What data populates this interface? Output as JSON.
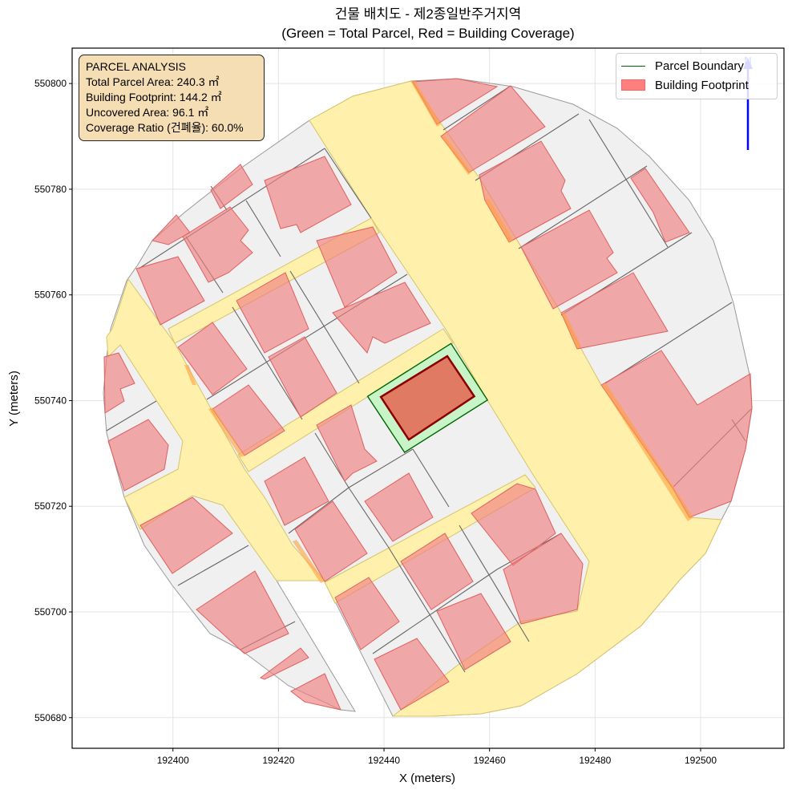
{
  "title": {
    "line1": "건물 배치도 - 제2종일반주거지역",
    "line2": "(Green = Total Parcel, Red = Building Coverage)"
  },
  "info_box": {
    "heading": "PARCEL ANALYSIS",
    "total_area": "Total Parcel Area: 240.3 ㎡",
    "footprint": "Building Footprint: 144.2 ㎡",
    "uncovered": "Uncovered Area: 96.1 ㎡",
    "ratio": "Coverage Ratio (건폐율): 60.0%"
  },
  "legend": {
    "parcel": "Parcel Boundary",
    "building": "Building Footprint"
  },
  "north_arrow": {
    "label": "N",
    "color": "#0000ff"
  },
  "colors": {
    "parcel_edge": "#006400",
    "parcel_fill": "#c8f5c8",
    "building_edge": "#8b0000",
    "building_fill": "#e07a62",
    "road": "#fff0a8",
    "context_parcel": "#f0f0f0",
    "context_building": "#f2a5a5"
  },
  "chart_data": {
    "type": "area",
    "title": "건물 배치도 - 제2종일반주거지역 (Green = Total Parcel, Red = Building Coverage)",
    "xlabel": "X (meters)",
    "ylabel": "Y (meters)",
    "xlim": [
      192380.9,
      192515.8
    ],
    "ylim": [
      550674.2,
      550806.7
    ],
    "xticks": [
      192400,
      192420,
      192440,
      192460,
      192480,
      192500
    ],
    "yticks": [
      550680,
      550700,
      550720,
      550740,
      550760,
      550780,
      550800
    ],
    "grid": true,
    "legend_position": "top-right",
    "series": [
      {
        "name": "Parcel Boundary",
        "points": [
          [
            192436.9,
            550740.8
          ],
          [
            192452.7,
            550750.8
          ],
          [
            192459.6,
            550740.1
          ],
          [
            192443.9,
            550730.2
          ]
        ]
      },
      {
        "name": "Building Footprint",
        "points": [
          [
            192439.4,
            550740.7
          ],
          [
            192452.0,
            550748.4
          ],
          [
            192457.1,
            550740.8
          ],
          [
            192444.7,
            550732.6
          ]
        ]
      }
    ],
    "stats": {
      "total_parcel_area_m2": 240.3,
      "building_footprint_m2": 144.2,
      "uncovered_area_m2": 96.1,
      "coverage_ratio_pct": 60.0
    }
  }
}
